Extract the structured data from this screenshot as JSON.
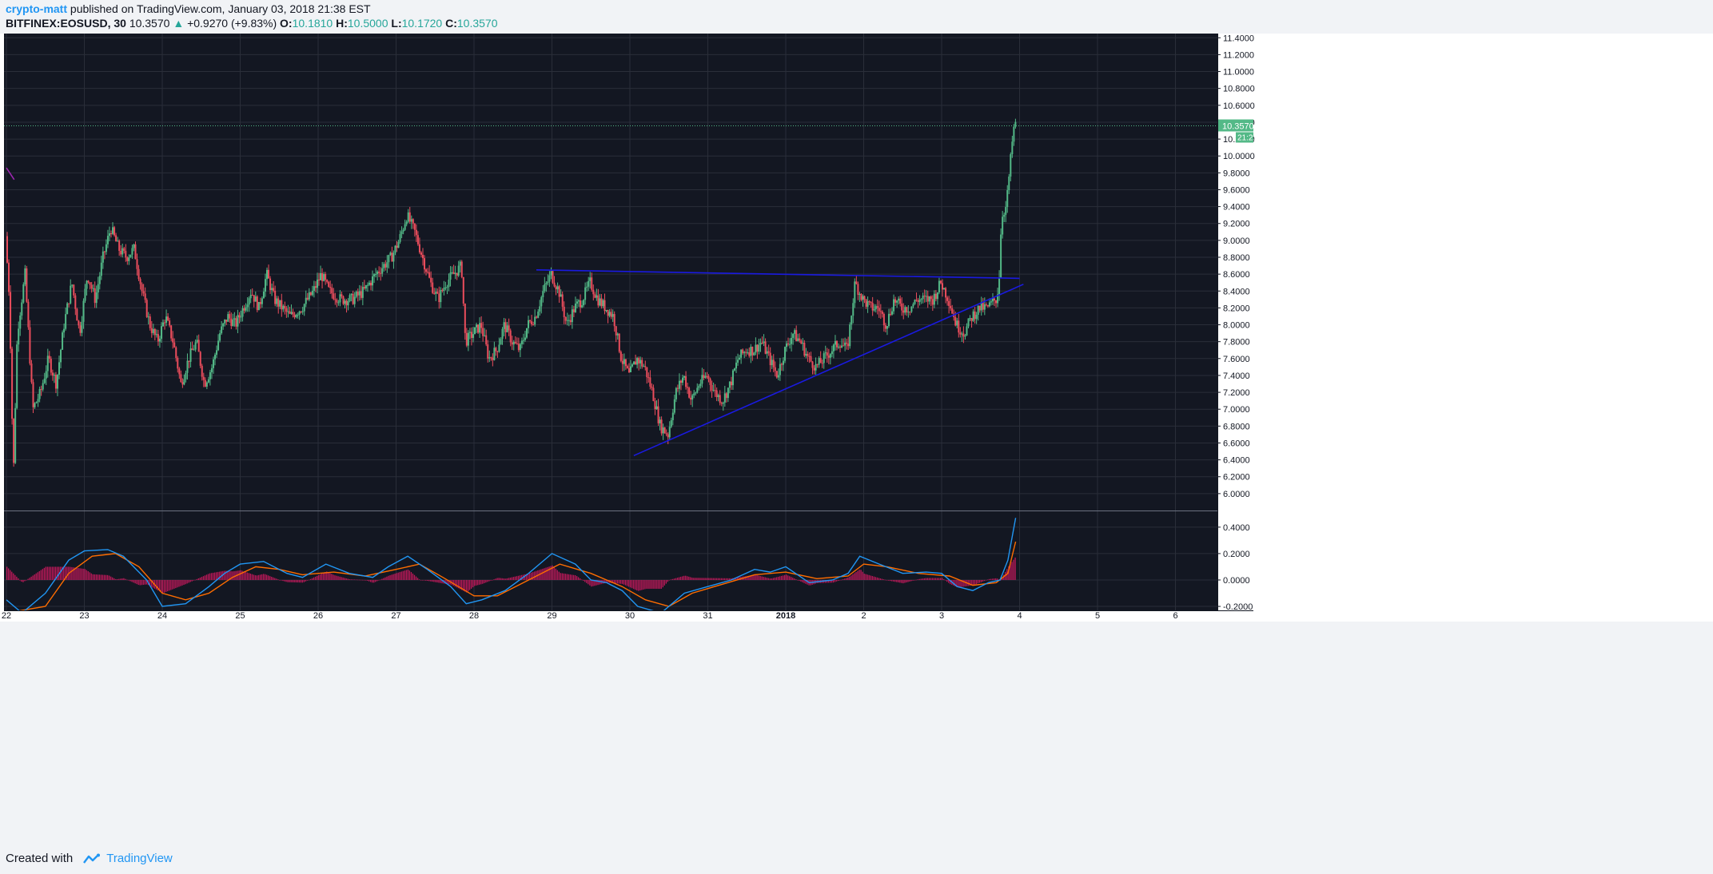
{
  "header": {
    "author": "crypto-matt",
    "published_text": "published on TradingView.com, January 03, 2018 21:38 EST",
    "symbol": "BITFINEX:EOSUSD, 30",
    "last": "10.3570",
    "change": "+0.9270 (+9.83%)",
    "o_label": "O:",
    "o": "10.1810",
    "h_label": "H:",
    "h": "10.5000",
    "l_label": "L:",
    "l": "10.1720",
    "c_label": "C:",
    "c": "10.3570"
  },
  "footer": {
    "created_with": "Created with",
    "brand": "TradingView"
  },
  "colors": {
    "background": "#131722",
    "grid": "#2a2e39",
    "up": "#53b987",
    "down": "#eb4d5c",
    "trendline": "#1a1ae0",
    "macd_line": "#2196f3",
    "signal_line": "#ff6d00",
    "histogram": "#c2185b",
    "price_tag": "#53b987"
  },
  "chart_data": {
    "type": "candlestick",
    "interval": "30",
    "price_axis": {
      "ticks": [
        "11.4000",
        "11.2000",
        "11.0000",
        "10.8000",
        "10.6000",
        "10.4000",
        "10.2000",
        "10.0000",
        "9.8000",
        "9.6000",
        "9.4000",
        "9.2000",
        "9.0000",
        "8.8000",
        "8.6000",
        "8.4000",
        "8.2000",
        "8.0000",
        "7.8000",
        "7.6000",
        "7.4000",
        "7.2000",
        "7.0000",
        "6.8000",
        "6.6000",
        "6.4000",
        "6.2000",
        "6.0000"
      ],
      "range": [
        5.8,
        11.45
      ],
      "last_price_label": "10.3570",
      "countdown_label": "21:21"
    },
    "time_axis": {
      "ticks": [
        {
          "label": "22",
          "d": 0
        },
        {
          "label": "23",
          "d": 1
        },
        {
          "label": "24",
          "d": 2
        },
        {
          "label": "25",
          "d": 3
        },
        {
          "label": "26",
          "d": 4
        },
        {
          "label": "27",
          "d": 5
        },
        {
          "label": "28",
          "d": 6
        },
        {
          "label": "29",
          "d": 7
        },
        {
          "label": "30",
          "d": 8
        },
        {
          "label": "31",
          "d": 9
        },
        {
          "label": "2018",
          "d": 10
        },
        {
          "label": "2",
          "d": 11
        },
        {
          "label": "3",
          "d": 12
        },
        {
          "label": "4",
          "d": 13
        },
        {
          "label": "5",
          "d": 14
        },
        {
          "label": "6",
          "d": 15
        }
      ]
    },
    "price_path": [
      [
        0,
        9.05
      ],
      [
        0.05,
        8.3
      ],
      [
        0.1,
        6.2
      ],
      [
        0.15,
        7.9
      ],
      [
        0.25,
        8.6
      ],
      [
        0.35,
        7.0
      ],
      [
        0.45,
        7.2
      ],
      [
        0.55,
        7.6
      ],
      [
        0.65,
        7.3
      ],
      [
        0.75,
        8.0
      ],
      [
        0.85,
        8.5
      ],
      [
        0.95,
        7.9
      ],
      [
        1.05,
        8.6
      ],
      [
        1.15,
        8.3
      ],
      [
        1.25,
        8.8
      ],
      [
        1.35,
        9.15
      ],
      [
        1.45,
        8.9
      ],
      [
        1.55,
        8.8
      ],
      [
        1.65,
        8.9
      ],
      [
        1.75,
        8.4
      ],
      [
        1.85,
        8.0
      ],
      [
        1.95,
        7.8
      ],
      [
        2.05,
        8.1
      ],
      [
        2.15,
        7.8
      ],
      [
        2.25,
        7.3
      ],
      [
        2.35,
        7.6
      ],
      [
        2.45,
        7.8
      ],
      [
        2.55,
        7.3
      ],
      [
        2.65,
        7.5
      ],
      [
        2.75,
        7.9
      ],
      [
        2.85,
        8.1
      ],
      [
        2.95,
        8.0
      ],
      [
        3.05,
        8.2
      ],
      [
        3.15,
        8.4
      ],
      [
        3.25,
        8.2
      ],
      [
        3.35,
        8.6
      ],
      [
        3.45,
        8.3
      ],
      [
        3.55,
        8.2
      ],
      [
        3.65,
        8.1
      ],
      [
        3.8,
        8.2
      ],
      [
        3.95,
        8.4
      ],
      [
        4.05,
        8.6
      ],
      [
        4.15,
        8.4
      ],
      [
        4.3,
        8.3
      ],
      [
        4.45,
        8.3
      ],
      [
        4.6,
        8.4
      ],
      [
        4.75,
        8.6
      ],
      [
        4.85,
        8.7
      ],
      [
        4.95,
        8.8
      ],
      [
        5.05,
        9.0
      ],
      [
        5.15,
        9.3
      ],
      [
        5.25,
        9.1
      ],
      [
        5.35,
        8.8
      ],
      [
        5.45,
        8.5
      ],
      [
        5.55,
        8.3
      ],
      [
        5.65,
        8.5
      ],
      [
        5.75,
        8.6
      ],
      [
        5.85,
        8.7
      ],
      [
        5.9,
        7.8
      ],
      [
        6.0,
        7.9
      ],
      [
        6.1,
        8.0
      ],
      [
        6.2,
        7.6
      ],
      [
        6.3,
        7.7
      ],
      [
        6.4,
        8.0
      ],
      [
        6.5,
        7.8
      ],
      [
        6.6,
        7.7
      ],
      [
        6.7,
        8.0
      ],
      [
        6.8,
        8.1
      ],
      [
        6.9,
        8.4
      ],
      [
        7.0,
        8.6
      ],
      [
        7.1,
        8.4
      ],
      [
        7.2,
        8.0
      ],
      [
        7.3,
        8.2
      ],
      [
        7.4,
        8.3
      ],
      [
        7.5,
        8.5
      ],
      [
        7.6,
        8.3
      ],
      [
        7.7,
        8.2
      ],
      [
        7.8,
        8.1
      ],
      [
        7.9,
        7.6
      ],
      [
        8.0,
        7.4
      ],
      [
        8.1,
        7.6
      ],
      [
        8.2,
        7.5
      ],
      [
        8.3,
        7.2
      ],
      [
        8.4,
        6.8
      ],
      [
        8.5,
        6.7
      ],
      [
        8.6,
        7.2
      ],
      [
        8.7,
        7.4
      ],
      [
        8.8,
        7.1
      ],
      [
        8.9,
        7.3
      ],
      [
        9.0,
        7.4
      ],
      [
        9.1,
        7.2
      ],
      [
        9.2,
        7.1
      ],
      [
        9.3,
        7.3
      ],
      [
        9.4,
        7.6
      ],
      [
        9.5,
        7.7
      ],
      [
        9.6,
        7.7
      ],
      [
        9.7,
        7.8
      ],
      [
        9.8,
        7.6
      ],
      [
        9.9,
        7.4
      ],
      [
        10.0,
        7.7
      ],
      [
        10.1,
        7.9
      ],
      [
        10.2,
        7.8
      ],
      [
        10.3,
        7.6
      ],
      [
        10.4,
        7.5
      ],
      [
        10.5,
        7.6
      ],
      [
        10.6,
        7.7
      ],
      [
        10.7,
        7.8
      ],
      [
        10.8,
        7.7
      ],
      [
        10.9,
        8.5
      ],
      [
        11.0,
        8.3
      ],
      [
        11.1,
        8.2
      ],
      [
        11.2,
        8.2
      ],
      [
        11.3,
        8.0
      ],
      [
        11.4,
        8.3
      ],
      [
        11.5,
        8.2
      ],
      [
        11.6,
        8.2
      ],
      [
        11.7,
        8.3
      ],
      [
        11.8,
        8.3
      ],
      [
        11.9,
        8.3
      ],
      [
        12.0,
        8.5
      ],
      [
        12.1,
        8.3
      ],
      [
        12.2,
        8.0
      ],
      [
        12.3,
        7.9
      ],
      [
        12.4,
        8.1
      ],
      [
        12.5,
        8.2
      ],
      [
        12.6,
        8.2
      ],
      [
        12.7,
        8.3
      ],
      [
        12.72,
        8.3
      ],
      [
        12.75,
        8.6
      ],
      [
        12.78,
        9.3
      ],
      [
        12.84,
        9.4
      ],
      [
        12.88,
        9.8
      ],
      [
        12.93,
        10.3
      ],
      [
        12.95,
        10.357
      ]
    ],
    "trendlines": [
      {
        "from": [
          6.8,
          8.65
        ],
        "to": [
          13.0,
          8.55
        ]
      },
      {
        "from": [
          8.05,
          6.45
        ],
        "to": [
          13.05,
          8.48
        ]
      },
      {
        "from": [
          0.0,
          9.86
        ],
        "to": [
          0.1,
          9.72
        ]
      }
    ],
    "macd": {
      "axis_ticks": [
        "0.4000",
        "0.2000",
        "0.0000",
        "-0.2000"
      ],
      "range": [
        -0.23,
        0.52
      ],
      "macd_line": [
        [
          0,
          -0.15
        ],
        [
          0.2,
          -0.25
        ],
        [
          0.5,
          -0.1
        ],
        [
          0.8,
          0.15
        ],
        [
          1.0,
          0.22
        ],
        [
          1.3,
          0.23
        ],
        [
          1.5,
          0.18
        ],
        [
          1.8,
          0.0
        ],
        [
          2.0,
          -0.2
        ],
        [
          2.3,
          -0.18
        ],
        [
          2.6,
          -0.05
        ],
        [
          2.8,
          0.05
        ],
        [
          3.0,
          0.12
        ],
        [
          3.3,
          0.14
        ],
        [
          3.6,
          0.05
        ],
        [
          3.8,
          0.02
        ],
        [
          4.1,
          0.12
        ],
        [
          4.4,
          0.05
        ],
        [
          4.7,
          0.02
        ],
        [
          4.9,
          0.1
        ],
        [
          5.15,
          0.18
        ],
        [
          5.4,
          0.08
        ],
        [
          5.7,
          -0.05
        ],
        [
          5.9,
          -0.18
        ],
        [
          6.1,
          -0.15
        ],
        [
          6.4,
          -0.08
        ],
        [
          6.7,
          0.05
        ],
        [
          7.0,
          0.2
        ],
        [
          7.3,
          0.12
        ],
        [
          7.5,
          0.0
        ],
        [
          7.7,
          -0.02
        ],
        [
          7.9,
          -0.08
        ],
        [
          8.1,
          -0.2
        ],
        [
          8.4,
          -0.25
        ],
        [
          8.7,
          -0.1
        ],
        [
          9.0,
          -0.05
        ],
        [
          9.3,
          0.0
        ],
        [
          9.6,
          0.08
        ],
        [
          9.8,
          0.06
        ],
        [
          10.0,
          0.1
        ],
        [
          10.3,
          -0.02
        ],
        [
          10.6,
          0.0
        ],
        [
          10.8,
          0.05
        ],
        [
          10.95,
          0.18
        ],
        [
          11.2,
          0.12
        ],
        [
          11.5,
          0.05
        ],
        [
          11.8,
          0.06
        ],
        [
          12.0,
          0.05
        ],
        [
          12.2,
          -0.05
        ],
        [
          12.4,
          -0.08
        ],
        [
          12.6,
          -0.02
        ],
        [
          12.75,
          0.0
        ],
        [
          12.85,
          0.15
        ],
        [
          12.95,
          0.47
        ]
      ],
      "signal_line": [
        [
          0,
          -0.25
        ],
        [
          0.5,
          -0.2
        ],
        [
          0.8,
          0.05
        ],
        [
          1.1,
          0.18
        ],
        [
          1.4,
          0.2
        ],
        [
          1.7,
          0.1
        ],
        [
          2.0,
          -0.1
        ],
        [
          2.3,
          -0.15
        ],
        [
          2.6,
          -0.1
        ],
        [
          2.9,
          0.02
        ],
        [
          3.2,
          0.1
        ],
        [
          3.5,
          0.08
        ],
        [
          3.8,
          0.04
        ],
        [
          4.2,
          0.06
        ],
        [
          4.6,
          0.03
        ],
        [
          5.0,
          0.08
        ],
        [
          5.3,
          0.12
        ],
        [
          5.6,
          0.02
        ],
        [
          6.0,
          -0.12
        ],
        [
          6.3,
          -0.12
        ],
        [
          6.7,
          0.0
        ],
        [
          7.1,
          0.12
        ],
        [
          7.5,
          0.05
        ],
        [
          7.9,
          -0.05
        ],
        [
          8.2,
          -0.15
        ],
        [
          8.5,
          -0.2
        ],
        [
          8.8,
          -0.1
        ],
        [
          9.2,
          -0.03
        ],
        [
          9.6,
          0.04
        ],
        [
          10.0,
          0.06
        ],
        [
          10.4,
          0.01
        ],
        [
          10.8,
          0.03
        ],
        [
          11.0,
          0.12
        ],
        [
          11.3,
          0.1
        ],
        [
          11.7,
          0.05
        ],
        [
          12.1,
          0.03
        ],
        [
          12.4,
          -0.04
        ],
        [
          12.7,
          -0.02
        ],
        [
          12.85,
          0.05
        ],
        [
          12.95,
          0.29
        ]
      ]
    }
  }
}
